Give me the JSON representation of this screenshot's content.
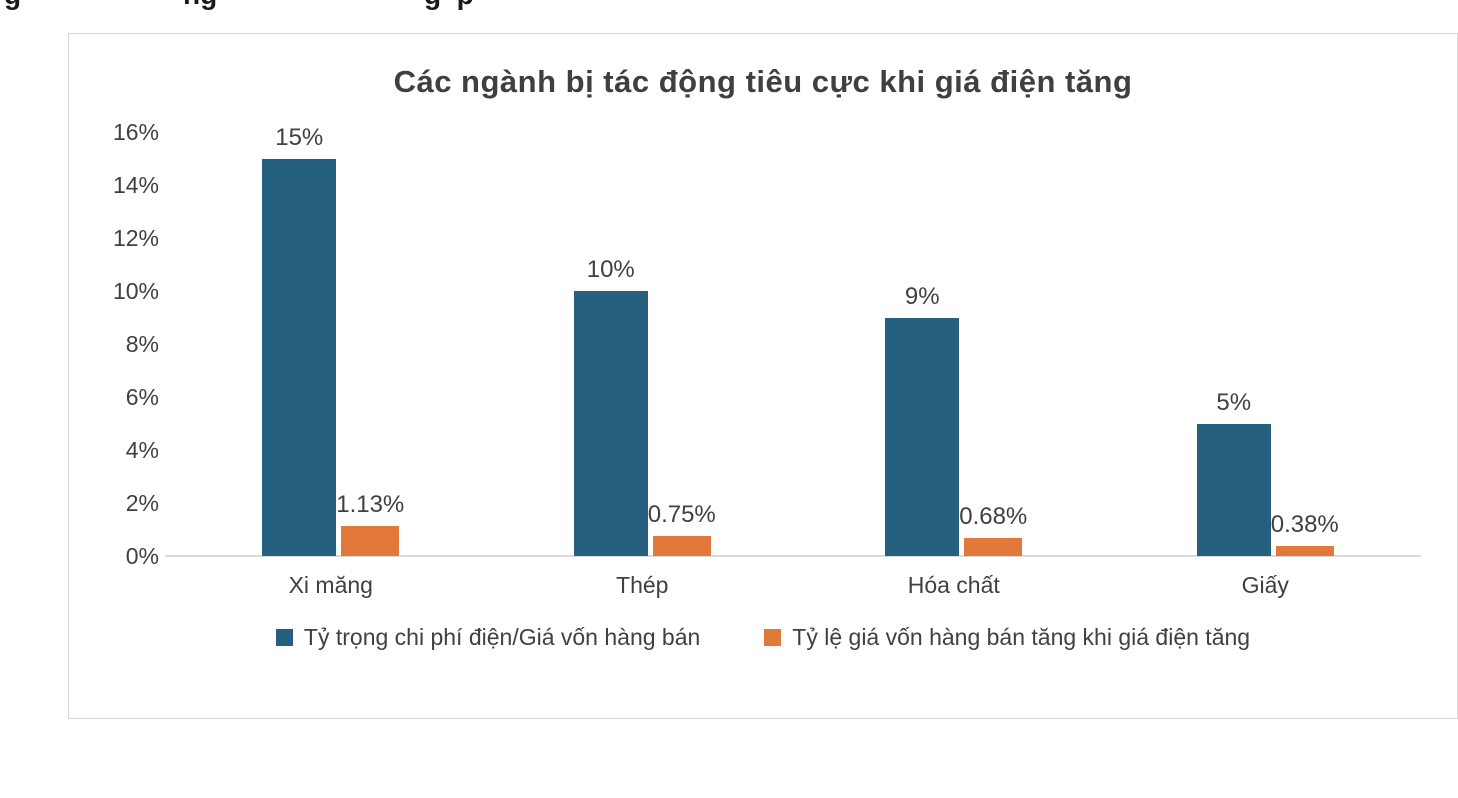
{
  "top_crop": {
    "fragments": [
      {
        "text": "g",
        "x": 4
      },
      {
        "text": "ng",
        "x": 183
      },
      {
        "text": "g  p",
        "x": 424
      }
    ]
  },
  "chart_data": {
    "type": "bar",
    "title": "Các ngành bị tác động tiêu cực khi giá điện tăng",
    "categories": [
      "Xi măng",
      "Thép",
      "Hóa chất",
      "Giấy"
    ],
    "series": [
      {
        "name": "Tỷ trọng chi phí điện/Giá vốn hàng bán",
        "color": "#25607f",
        "values": [
          15,
          10,
          9,
          5
        ],
        "labels": [
          "15%",
          "10%",
          "9%",
          "5%"
        ]
      },
      {
        "name": "Tỷ lệ giá vốn hàng bán tăng khi giá điện tăng",
        "color": "#e2793a",
        "values": [
          1.13,
          0.75,
          0.68,
          0.38
        ],
        "labels": [
          "1.13%",
          "0.75%",
          "0.68%",
          "0.38%"
        ]
      }
    ],
    "xlabel": "",
    "ylabel": "",
    "ylim": [
      0,
      16
    ],
    "yticks": [
      "0%",
      "2%",
      "4%",
      "6%",
      "8%",
      "10%",
      "12%",
      "14%",
      "16%"
    ],
    "grid": false,
    "legend_position": "bottom"
  }
}
